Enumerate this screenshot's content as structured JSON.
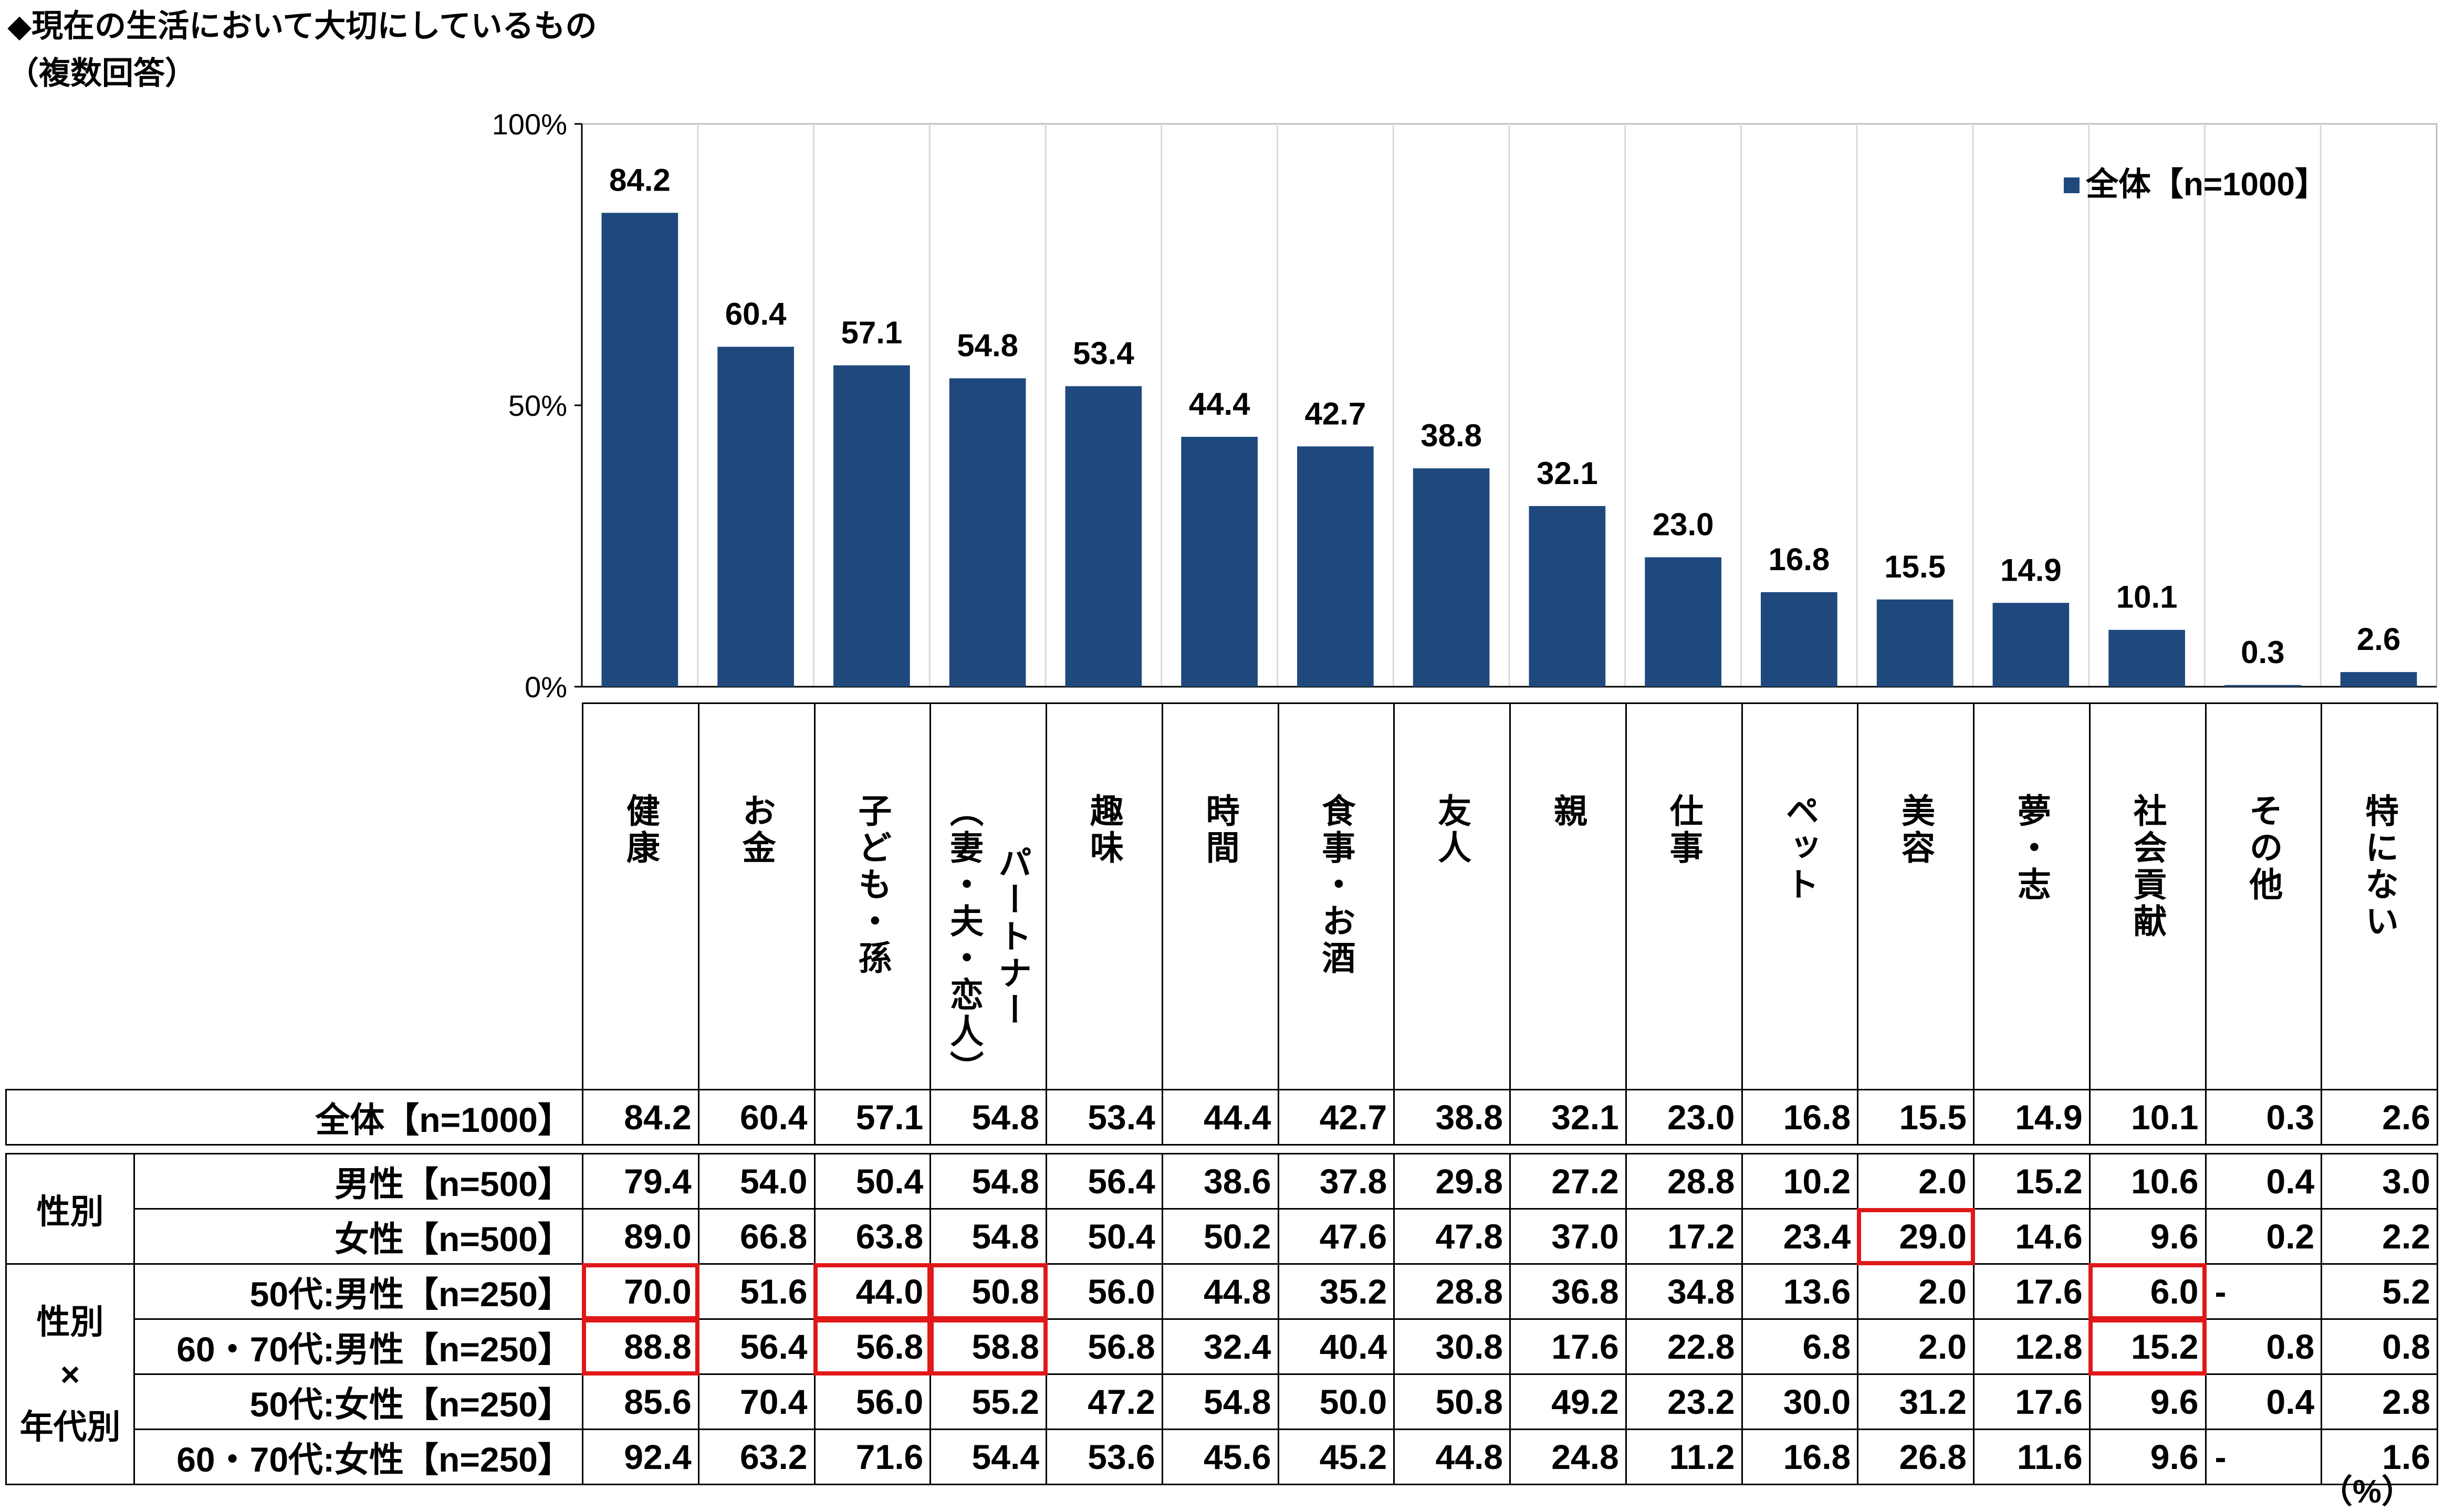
{
  "title": "◆現在の生活において大切にしているもの",
  "subtitle": "（複数回答）",
  "unit_note": "（%）",
  "chart_data": {
    "type": "bar",
    "categories": [
      "健康",
      "お金",
      "子ども・孫",
      "パートナー（妻・夫・恋人）",
      "趣味",
      "時間",
      "食事・お酒",
      "友人",
      "親",
      "仕事",
      "ペット",
      "美容",
      "夢・志",
      "社会貢献",
      "その他",
      "特にない"
    ],
    "series": [
      {
        "name": "全体【n=1000】",
        "values": [
          84.2,
          60.4,
          57.1,
          54.8,
          53.4,
          44.4,
          42.7,
          38.8,
          32.1,
          23.0,
          16.8,
          15.5,
          14.9,
          10.1,
          0.3,
          2.6
        ]
      }
    ],
    "ylim": [
      0,
      100
    ],
    "yticks": [
      "0%",
      "50%",
      "100%"
    ],
    "ytick_values": [
      0,
      50,
      100
    ],
    "bar_color": "#1f497d",
    "grid": true,
    "legend_position": "top-right"
  },
  "table": {
    "rows": [
      {
        "group": "",
        "label": "全体【n=1000】",
        "values": [
          "84.2",
          "60.4",
          "57.1",
          "54.8",
          "53.4",
          "44.4",
          "42.7",
          "38.8",
          "32.1",
          "23.0",
          "16.8",
          "15.5",
          "14.9",
          "10.1",
          "0.3",
          "2.6"
        ]
      },
      {
        "group": "性別",
        "label": "男性【n=500】",
        "values": [
          "79.4",
          "54.0",
          "50.4",
          "54.8",
          "56.4",
          "38.6",
          "37.8",
          "29.8",
          "27.2",
          "28.8",
          "10.2",
          "2.0",
          "15.2",
          "10.6",
          "0.4",
          "3.0"
        ]
      },
      {
        "group": "",
        "label": "女性【n=500】",
        "values": [
          "89.0",
          "66.8",
          "63.8",
          "54.8",
          "50.4",
          "50.2",
          "47.6",
          "47.8",
          "37.0",
          "17.2",
          "23.4",
          "29.0",
          "14.6",
          "9.6",
          "0.2",
          "2.2"
        ]
      },
      {
        "group": "性別×年代別",
        "label": "50代:男性【n=250】",
        "values": [
          "70.0",
          "51.6",
          "44.0",
          "50.8",
          "56.0",
          "44.8",
          "35.2",
          "28.8",
          "36.8",
          "34.8",
          "13.6",
          "2.0",
          "17.6",
          "6.0",
          "-",
          "5.2"
        ]
      },
      {
        "group": "",
        "label": "60・70代:男性【n=250】",
        "values": [
          "88.8",
          "56.4",
          "56.8",
          "58.8",
          "56.8",
          "32.4",
          "40.4",
          "30.8",
          "17.6",
          "22.8",
          "6.8",
          "2.0",
          "12.8",
          "15.2",
          "0.8",
          "0.8"
        ]
      },
      {
        "group": "",
        "label": "50代:女性【n=250】",
        "values": [
          "85.6",
          "70.4",
          "56.0",
          "55.2",
          "47.2",
          "54.8",
          "50.0",
          "50.8",
          "49.2",
          "23.2",
          "30.0",
          "31.2",
          "17.6",
          "9.6",
          "0.4",
          "2.8"
        ]
      },
      {
        "group": "",
        "label": "60・70代:女性【n=250】",
        "values": [
          "92.4",
          "63.2",
          "71.6",
          "54.4",
          "53.6",
          "45.6",
          "45.2",
          "44.8",
          "24.8",
          "11.2",
          "16.8",
          "26.8",
          "11.6",
          "9.6",
          "-",
          "1.6"
        ]
      }
    ],
    "group_labels": {
      "gender": "性別",
      "gender_age_top": "性別",
      "gender_age_mid": "×",
      "gender_age_bottom": "年代別"
    },
    "highlight_color": "#e01818",
    "highlights": [
      [
        3,
        0
      ],
      [
        4,
        0
      ],
      [
        3,
        2
      ],
      [
        4,
        2
      ],
      [
        3,
        3
      ],
      [
        4,
        3
      ],
      [
        2,
        11
      ],
      [
        3,
        13
      ],
      [
        4,
        13
      ]
    ]
  }
}
